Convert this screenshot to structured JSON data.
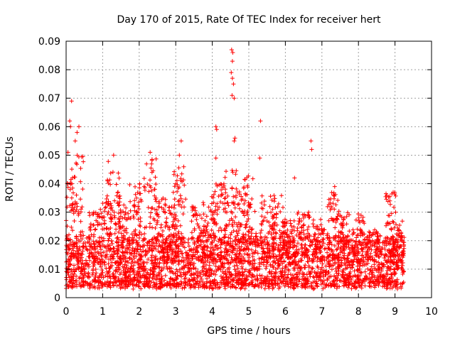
{
  "chart_data": {
    "type": "scatter",
    "title": "Day 170 of 2015, Rate Of TEC Index for receiver hert",
    "xlabel": "GPS time / hours",
    "ylabel": "ROTI / TECUs",
    "xlim": [
      0,
      10
    ],
    "ylim": [
      0,
      0.09
    ],
    "x_ticks": [
      "0",
      "1",
      "2",
      "3",
      "4",
      "5",
      "6",
      "7",
      "8",
      "9",
      "10"
    ],
    "y_ticks": [
      "0",
      "0.01",
      "0.02",
      "0.03",
      "0.04",
      "0.05",
      "0.06",
      "0.07",
      "0.08",
      "0.09"
    ],
    "grid": true,
    "marker": "plus",
    "color": "#ff0000",
    "x_data_end": 9.25,
    "baseline_range": [
      0.004,
      0.022
    ],
    "outliers": [
      {
        "x": 0.15,
        "y": 0.069
      },
      {
        "x": 0.1,
        "y": 0.062
      },
      {
        "x": 0.12,
        "y": 0.06
      },
      {
        "x": 0.3,
        "y": 0.058
      },
      {
        "x": 0.35,
        "y": 0.06
      },
      {
        "x": 0.05,
        "y": 0.051
      },
      {
        "x": 0.25,
        "y": 0.055
      },
      {
        "x": 3.15,
        "y": 0.055
      },
      {
        "x": 3.1,
        "y": 0.05
      },
      {
        "x": 2.3,
        "y": 0.051
      },
      {
        "x": 1.3,
        "y": 0.05
      },
      {
        "x": 4.1,
        "y": 0.06
      },
      {
        "x": 4.12,
        "y": 0.059
      },
      {
        "x": 4.53,
        "y": 0.087
      },
      {
        "x": 4.56,
        "y": 0.086
      },
      {
        "x": 4.55,
        "y": 0.083
      },
      {
        "x": 4.52,
        "y": 0.079
      },
      {
        "x": 4.55,
        "y": 0.077
      },
      {
        "x": 4.58,
        "y": 0.075
      },
      {
        "x": 4.54,
        "y": 0.071
      },
      {
        "x": 4.6,
        "y": 0.07
      },
      {
        "x": 4.62,
        "y": 0.056
      },
      {
        "x": 4.6,
        "y": 0.055
      },
      {
        "x": 4.1,
        "y": 0.049
      },
      {
        "x": 5.32,
        "y": 0.062
      },
      {
        "x": 5.3,
        "y": 0.049
      },
      {
        "x": 6.7,
        "y": 0.055
      },
      {
        "x": 6.72,
        "y": 0.052
      },
      {
        "x": 6.25,
        "y": 0.042
      },
      {
        "x": 7.35,
        "y": 0.039
      },
      {
        "x": 8.95,
        "y": 0.037
      }
    ]
  }
}
